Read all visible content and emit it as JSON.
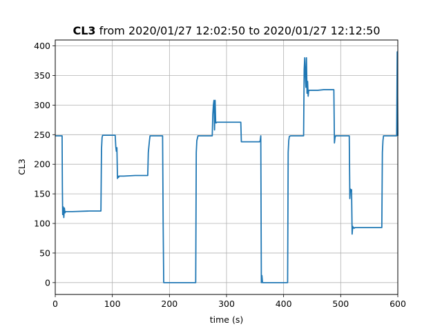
{
  "chart_data": {
    "type": "line",
    "title_bold": "CL3",
    "title_rest": " from 2020/01/27 12:02:50 to 2020/01/27 12:12:50",
    "xlabel": "time (s)",
    "ylabel": "CL3",
    "xlim": [
      0,
      600
    ],
    "ylim": [
      -20,
      410
    ],
    "xticks": [
      0,
      100,
      200,
      300,
      400,
      500,
      600
    ],
    "yticks": [
      0,
      50,
      100,
      150,
      200,
      250,
      300,
      350,
      400
    ],
    "grid": true,
    "line_color": "#1f77b4",
    "series": [
      {
        "x": [
          0,
          12,
          12.5,
          13,
          14,
          15,
          16,
          17,
          18,
          20,
          30,
          60,
          80,
          81,
          82,
          83,
          100,
          105,
          106,
          107,
          108,
          109,
          110,
          111,
          112,
          120,
          140,
          162,
          163,
          165,
          166,
          170,
          180,
          188,
          189,
          190,
          191,
          200,
          220,
          246,
          247,
          248,
          250,
          260,
          275,
          276,
          277,
          278,
          279,
          280,
          281,
          282,
          283,
          300,
          325,
          326,
          340,
          358,
          359,
          360,
          361,
          362,
          363,
          380,
          395,
          407,
          408,
          409,
          410,
          412,
          420,
          430,
          435,
          436,
          437,
          438,
          439,
          440,
          441,
          442,
          443,
          444,
          460,
          470,
          488,
          489,
          490,
          491,
          492,
          493,
          500,
          515,
          516,
          517,
          518,
          519,
          520,
          521,
          522,
          523,
          524,
          525,
          540,
          560,
          572,
          573,
          574,
          575,
          580,
          590,
          598,
          599,
          600
        ],
        "y": [
          248,
          248,
          160,
          115,
          128,
          110,
          126,
          118,
          120,
          120,
          120,
          121,
          121,
          225,
          245,
          249,
          249,
          249,
          230,
          222,
          228,
          176,
          180,
          178,
          180,
          180,
          181,
          181,
          220,
          240,
          248,
          248,
          248,
          248,
          100,
          0,
          0,
          0,
          0,
          0,
          220,
          240,
          248,
          248,
          248,
          285,
          300,
          308,
          258,
          308,
          270,
          270,
          271,
          271,
          271,
          238,
          238,
          238,
          240,
          248,
          0,
          12,
          0,
          0,
          0,
          0,
          220,
          240,
          247,
          248,
          248,
          248,
          248,
          360,
          380,
          350,
          330,
          380,
          320,
          340,
          315,
          325,
          325,
          326,
          326,
          236,
          245,
          248,
          248,
          248,
          248,
          248,
          142,
          158,
          155,
          157,
          82,
          95,
          92,
          93,
          92,
          93,
          93,
          93,
          93,
          220,
          240,
          248,
          248,
          248,
          248,
          390,
          248
        ]
      }
    ]
  }
}
